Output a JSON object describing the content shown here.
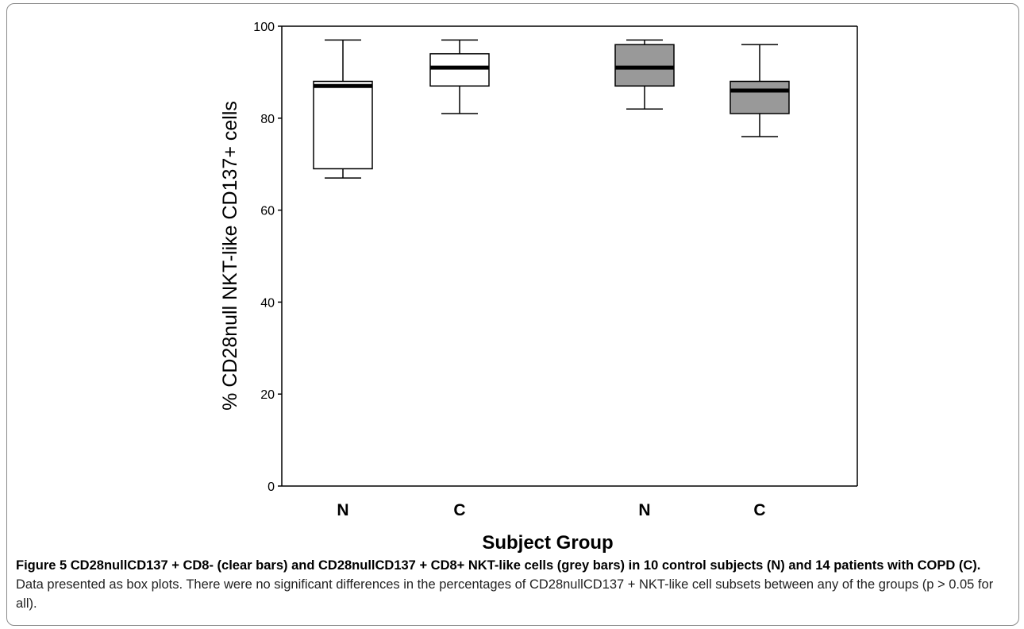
{
  "chart_data": {
    "type": "box",
    "ylabel": "% CD28null NKT-like CD137+ cells",
    "xlabel": "Subject Group",
    "ylim": [
      0,
      100
    ],
    "yticks": [
      0,
      20,
      40,
      60,
      80,
      100
    ],
    "groups": [
      {
        "label": "N",
        "fill": "#ffffff",
        "min": 67,
        "q1": 69,
        "median": 87,
        "q3": 88,
        "max": 97
      },
      {
        "label": "C",
        "fill": "#ffffff",
        "min": 81,
        "q1": 87,
        "median": 91,
        "q3": 94,
        "max": 97
      },
      {
        "label": "N",
        "fill": "#999999",
        "min": 82,
        "q1": 87,
        "median": 91,
        "q3": 96,
        "max": 97
      },
      {
        "label": "C",
        "fill": "#999999",
        "min": 76,
        "q1": 81,
        "median": 86,
        "q3": 88,
        "max": 96
      }
    ]
  },
  "caption": {
    "bold": "Figure 5 CD28nullCD137 + CD8- (clear bars) and CD28nullCD137 + CD8+ NKT-like cells (grey bars) in 10 control subjects (N) and 14 patients with COPD (C).",
    "text": " Data presented as box plots. There were no significant differences in the percentages of CD28nullCD137 + NKT-like cell subsets between any of the groups (p > 0.05 for all)."
  }
}
